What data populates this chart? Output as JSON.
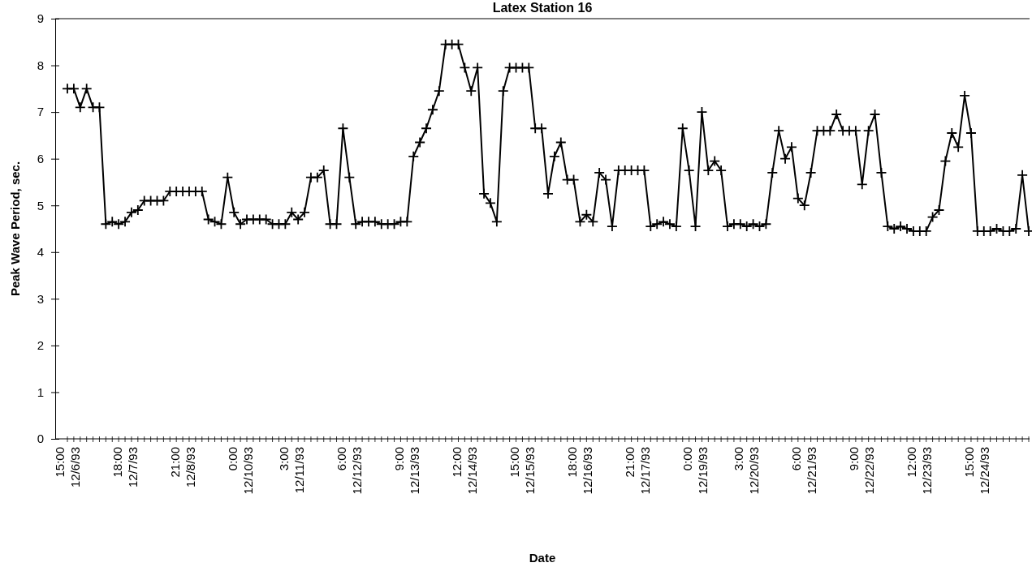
{
  "chart_data": {
    "type": "line",
    "title": "Latex Station 16",
    "xlabel": "Date",
    "ylabel": "Peak Wave Period, sec.",
    "categories": [
      "15:00\n12/6/93",
      null,
      null,
      null,
      null,
      null,
      null,
      null,
      null,
      "18:00\n12/7/93",
      null,
      null,
      null,
      null,
      null,
      null,
      null,
      null,
      "21:00\n12/8/93",
      null,
      null,
      null,
      null,
      null,
      null,
      null,
      null,
      "0:00\n12/10/93",
      null,
      null,
      null,
      null,
      null,
      null,
      null,
      "3:00\n12/11/93",
      null,
      null,
      null,
      null,
      null,
      null,
      null,
      null,
      "6:00\n12/12/93",
      null,
      null,
      null,
      null,
      null,
      null,
      null,
      null,
      "9:00\n12/13/93",
      null,
      null,
      null,
      null,
      null,
      null,
      null,
      null,
      "12:00\n12/14/93",
      null,
      null,
      null,
      null,
      null,
      null,
      null,
      null,
      "15:00\n12/15/93",
      null,
      null,
      null,
      null,
      null,
      null,
      null,
      null,
      "18:00\n12/16/93",
      null,
      null,
      null,
      null,
      null,
      null,
      null,
      null,
      "21:00\n12/17/93",
      null,
      null,
      null,
      null,
      null,
      null,
      null,
      null,
      "0:00\n12/19/93",
      null,
      null,
      null,
      null,
      null,
      null,
      null,
      "3:00\n12/20/93",
      null,
      null,
      null,
      null,
      null,
      null,
      null,
      null,
      "6:00\n12/21/93",
      null,
      null,
      null,
      null,
      null,
      null,
      null,
      null,
      "9:00\n12/22/93",
      null,
      null,
      null,
      null,
      null,
      null,
      null,
      null,
      "12:00\n12/23/93",
      null,
      null,
      null,
      null,
      null,
      null,
      null,
      null,
      "15:00\n12/24/93",
      null,
      null,
      null,
      null,
      null,
      null,
      null,
      null
    ],
    "series": [
      {
        "color": "#000000",
        "values": [
          7.5,
          7.5,
          7.1,
          7.5,
          7.1,
          7.1,
          4.6,
          4.65,
          4.6,
          4.65,
          4.85,
          4.9,
          5.1,
          5.1,
          5.1,
          5.1,
          5.3,
          5.3,
          5.3,
          5.3,
          5.3,
          5.3,
          4.7,
          4.65,
          4.6,
          5.6,
          4.85,
          4.6,
          4.7,
          4.7,
          4.7,
          4.7,
          4.6,
          4.6,
          4.6,
          4.85,
          4.7,
          4.85,
          5.6,
          5.6,
          5.75,
          4.6,
          4.6,
          6.65,
          5.6,
          4.6,
          4.65,
          4.65,
          4.65,
          4.6,
          4.6,
          4.6,
          4.65,
          4.65,
          6.05,
          6.35,
          6.65,
          7.05,
          7.45,
          8.45,
          8.45,
          8.45,
          7.95,
          7.45,
          7.95,
          5.25,
          5.05,
          4.65,
          7.45,
          7.95,
          7.95,
          7.95,
          7.95,
          6.65,
          6.65,
          5.25,
          6.05,
          6.35,
          5.55,
          5.55,
          4.65,
          4.8,
          4.65,
          5.7,
          5.55,
          4.55,
          5.75,
          5.75,
          5.75,
          5.75,
          5.75,
          4.55,
          4.6,
          4.65,
          4.6,
          4.55,
          6.65,
          5.75,
          4.55,
          7.0,
          5.75,
          5.95,
          5.75,
          4.55,
          4.6,
          4.6,
          4.55,
          4.6,
          4.55,
          4.6,
          5.7,
          6.6,
          6.0,
          6.25,
          5.15,
          5.0,
          5.7,
          6.6,
          6.6,
          6.6,
          6.95,
          6.6,
          6.6,
          6.6,
          5.45,
          6.6,
          6.95,
          5.7,
          4.55,
          4.5,
          4.55,
          4.5,
          4.45,
          4.45,
          4.45,
          4.75,
          4.9,
          5.95,
          6.55,
          6.25,
          7.35,
          6.55,
          4.45,
          4.45,
          4.45,
          4.5,
          4.45,
          4.45,
          4.5,
          5.65,
          4.45
        ]
      }
    ],
    "ylim": [
      0,
      9
    ],
    "yticks": [
      0,
      1,
      2,
      3,
      4,
      5,
      6,
      7,
      8,
      9
    ],
    "marker": "cross",
    "line_style": "solid"
  }
}
